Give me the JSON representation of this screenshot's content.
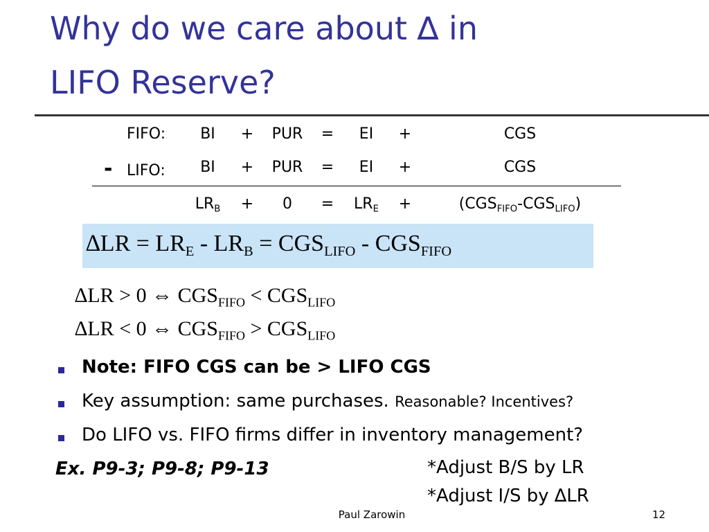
{
  "title": [
    "Why do we care about ∆ in",
    "LIFO Reserve?"
  ],
  "fifo_row": {
    "label": "FIFO:",
    "cells": [
      "BI",
      "+",
      "PUR",
      "=",
      "EI",
      "+",
      "CGS"
    ]
  },
  "lifo_row": {
    "sign": "-",
    "label": "LIFO:",
    "cells": [
      "BI",
      "+",
      "PUR",
      "=",
      "EI",
      "+",
      "CGS"
    ]
  },
  "difference_row": {
    "lr_b": [
      "LR",
      "B"
    ],
    "plus_1": "+",
    "zero": "0",
    "equals": "=",
    "lr_e": [
      "LR",
      "E"
    ],
    "plus_2": "+",
    "cgs_diff": [
      "(CGS",
      "FIFO",
      "-CGS",
      "LIFO",
      ")"
    ]
  },
  "formula": [
    "∆LR = LR",
    "E",
    " - LR",
    "B",
    " = CGS",
    "LIFO",
    " - CGS",
    "FIFO"
  ],
  "inequalities": [
    [
      "∆LR > 0 ⇔ CGS",
      "FIFO",
      " < CGS",
      "LIFO"
    ],
    [
      "∆LR < 0 ⇔ CGS",
      "FIFO",
      " > CGS",
      "LIFO"
    ]
  ],
  "bullets": [
    {
      "text": "Note: FIFO CGS can be > LIFO CGS"
    },
    {
      "text": "Key assumption: same purchases.",
      "aside": "Reasonable? Incentives?"
    },
    {
      "text": "Do LIFO vs. FIFO firms differ in inventory management?"
    }
  ],
  "example": "Ex. P9-3; P9-8; P9-13",
  "notes": [
    "*Adjust B/S by LR",
    "*Adjust I/S by ∆LR"
  ],
  "footer": {
    "author": "Paul Zarowin",
    "page": "12"
  }
}
